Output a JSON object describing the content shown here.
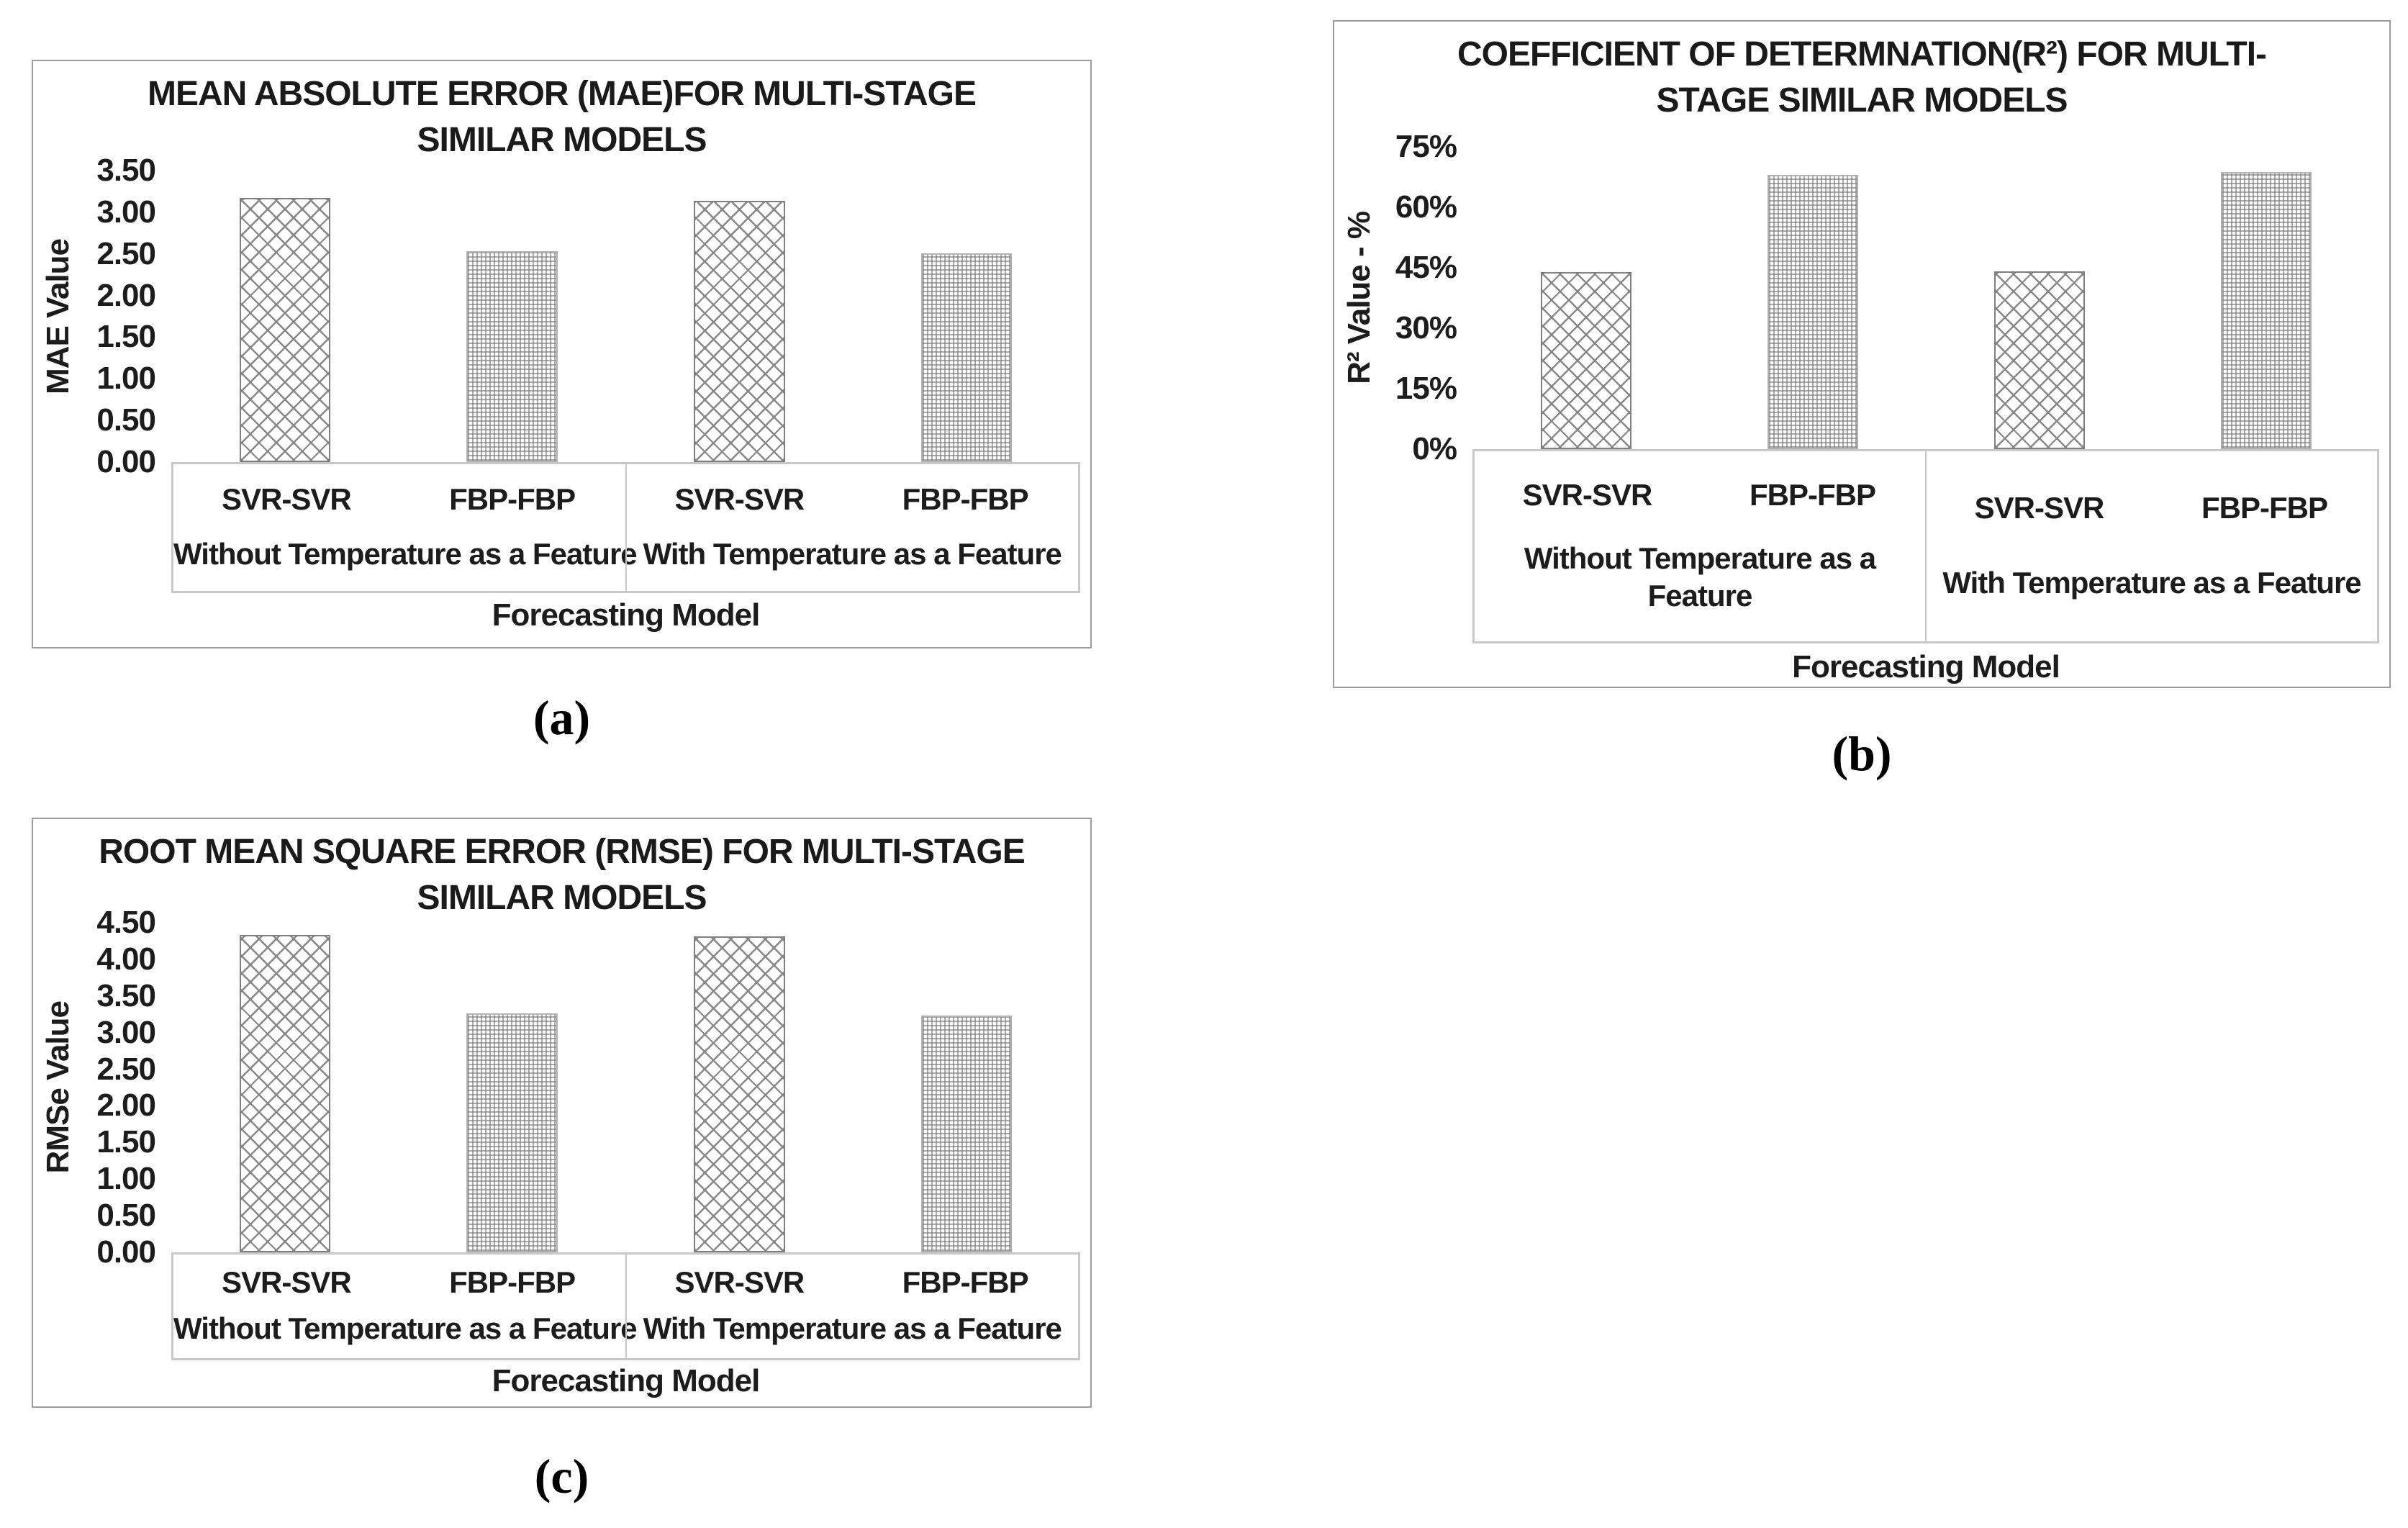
{
  "page": {
    "background": "#ffffff"
  },
  "colors": {
    "text": "#1c1c1c",
    "figure_border": "#9e9e9e",
    "axis_box_border": "#c8c8c8",
    "crosshatch_pattern_line": "#878787",
    "dots_pattern_line": "#767676",
    "crosshatch_bar_border": "#7f7f7f",
    "dots_bar_border": "#b1b1b1"
  },
  "captions": {
    "a": "(a)",
    "b": "(b)",
    "c": "(c)"
  },
  "chart_data": [
    {
      "id": "a",
      "type": "bar",
      "title_lines": [
        "MEAN ABSOLUTE ERROR (MAE)FOR MULTI-STAGE",
        "SIMILAR MODELS"
      ],
      "y_axis_label": "MAE Value",
      "x_axis_label": "Forecasting Model",
      "y_ticks": [
        "3.50",
        "3.00",
        "2.50",
        "2.00",
        "1.50",
        "1.00",
        "0.50",
        "0.00"
      ],
      "y_min": 0,
      "y_max": 3.5,
      "grid": "off",
      "legend": "none",
      "groups": [
        {
          "lines": [
            "Without Temperature as a Feature",
            ""
          ]
        },
        {
          "lines": [
            "With Temperature as a Feature",
            ""
          ]
        }
      ],
      "categories": [
        "SVR-SVR",
        "FBP-FBP",
        "SVR-SVR",
        "FBP-FBP"
      ],
      "series": [
        {
          "group": "Without Temperature as a Feature",
          "model": "SVR-SVR",
          "value": 3.17,
          "pattern": "diamond-crosshatch"
        },
        {
          "group": "Without Temperature as a Feature",
          "model": "FBP-FBP",
          "value": 2.53,
          "pattern": "fine-dots"
        },
        {
          "group": "With Temperature as a Feature",
          "model": "SVR-SVR",
          "value": 3.14,
          "pattern": "diamond-crosshatch"
        },
        {
          "group": "With Temperature as a Feature",
          "model": "FBP-FBP",
          "value": 2.51,
          "pattern": "fine-dots"
        }
      ]
    },
    {
      "id": "b",
      "type": "bar",
      "title_lines": [
        "COEFFICIENT OF DETERMNATION(R²) FOR MULTI-",
        "STAGE SIMILAR MODELS"
      ],
      "y_axis_label": "R² Value - %",
      "x_axis_label": "Forecasting Model",
      "y_ticks": [
        "75%",
        "60%",
        "45%",
        "30%",
        "15%",
        "0%"
      ],
      "y_min": 0,
      "y_max": 75,
      "grid": "off",
      "legend": "none",
      "groups": [
        {
          "lines": [
            "Without Temperature as a",
            "Feature"
          ]
        },
        {
          "lines": [
            "With Temperature as a Feature",
            ""
          ]
        }
      ],
      "categories": [
        "SVR-SVR",
        "FBP-FBP",
        "SVR-SVR",
        "FBP-FBP"
      ],
      "series": [
        {
          "group": "Without Temperature as a Feature",
          "model": "SVR-SVR",
          "value": 43.9,
          "pattern": "diamond-crosshatch"
        },
        {
          "group": "Without Temperature as a Feature",
          "model": "FBP-FBP",
          "value": 68.0,
          "pattern": "fine-dots"
        },
        {
          "group": "With Temperature as a Feature",
          "model": "SVR-SVR",
          "value": 44.1,
          "pattern": "diamond-crosshatch"
        },
        {
          "group": "With Temperature as a Feature",
          "model": "FBP-FBP",
          "value": 68.8,
          "pattern": "fine-dots"
        }
      ]
    },
    {
      "id": "c",
      "type": "bar",
      "title_lines": [
        "ROOT MEAN SQUARE ERROR (RMSE) FOR MULTI-STAGE",
        "SIMILAR MODELS"
      ],
      "y_axis_label": "RMSe Value",
      "x_axis_label": "Forecasting Model",
      "y_ticks": [
        "4.50",
        "4.00",
        "3.50",
        "3.00",
        "2.50",
        "2.00",
        "1.50",
        "1.00",
        "0.50",
        "0.00"
      ],
      "y_min": 0,
      "y_max": 4.5,
      "grid": "off",
      "legend": "none",
      "groups": [
        {
          "lines": [
            "Without Temperature as a Feature",
            ""
          ]
        },
        {
          "lines": [
            "With Temperature as a Feature",
            ""
          ]
        }
      ],
      "categories": [
        "SVR-SVR",
        "FBP-FBP",
        "SVR-SVR",
        "FBP-FBP"
      ],
      "series": [
        {
          "group": "Without Temperature as a Feature",
          "model": "SVR-SVR",
          "value": 4.33,
          "pattern": "diamond-crosshatch"
        },
        {
          "group": "Without Temperature as a Feature",
          "model": "FBP-FBP",
          "value": 3.26,
          "pattern": "fine-dots"
        },
        {
          "group": "With Temperature as a Feature",
          "model": "SVR-SVR",
          "value": 4.31,
          "pattern": "diamond-crosshatch"
        },
        {
          "group": "With Temperature as a Feature",
          "model": "FBP-FBP",
          "value": 3.23,
          "pattern": "fine-dots"
        }
      ]
    }
  ]
}
